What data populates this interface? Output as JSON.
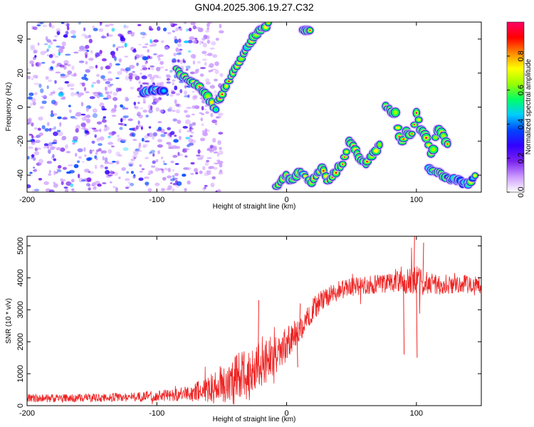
{
  "title": "GN04.2025.306.19.27.C32",
  "chart_data": [
    {
      "type": "heatmap",
      "title": "GN04.2025.306.19.27.C32",
      "xlabel": "Height of straight line (km)",
      "ylabel": "Frequency (Hz)",
      "xlim": [
        -200,
        150
      ],
      "ylim": [
        -50,
        50
      ],
      "xticks": [
        -200,
        -100,
        0,
        100
      ],
      "yticks": [
        -40,
        -20,
        0,
        20,
        40
      ],
      "colorbar": {
        "label": "Normalized spectral amplitude",
        "range": [
          0,
          1
        ],
        "ticks": [
          "0.0",
          "0.2",
          "0.4",
          "0.6",
          "0.8"
        ],
        "colors": [
          "#ffffff",
          "#cc99ff",
          "#7a22ee",
          "#3300ff",
          "#0044ff",
          "#00ccff",
          "#00ff66",
          "#99ff00",
          "#ffff00",
          "#ff8800",
          "#ff0000",
          "#ff0066"
        ]
      },
      "noise_region_x": [
        -200,
        -60
      ],
      "ridges": [
        {
          "x": [
            -110,
            -105,
            -100,
            -95
          ],
          "y": [
            9,
            9,
            10,
            10
          ],
          "amplitude": 0.45
        },
        {
          "x": [
            -85,
            -80,
            -75,
            -70,
            -65,
            -60,
            -55,
            -50,
            -46,
            -42,
            -38,
            -34,
            -30,
            -26,
            -22,
            -18,
            -14
          ],
          "y": [
            22,
            18,
            16,
            13,
            10,
            5,
            -2,
            8,
            12,
            20,
            25,
            30,
            35,
            40,
            44,
            47,
            49
          ],
          "amplitude": 0.75
        },
        {
          "x": [
            12,
            16,
            18
          ],
          "y": [
            46,
            45,
            46
          ],
          "amplitude": 0.7
        },
        {
          "x": [
            -8,
            -4,
            0,
            4,
            8,
            12,
            16,
            20,
            24,
            28,
            32,
            36,
            40,
            44,
            48,
            52,
            56,
            60,
            64,
            68,
            72
          ],
          "y": [
            -48,
            -44,
            -40,
            -44,
            -40,
            -38,
            -42,
            -44,
            -38,
            -36,
            -44,
            -40,
            -36,
            -32,
            -20,
            -24,
            -30,
            -34,
            -30,
            -26,
            -22
          ],
          "amplitude": 0.8
        },
        {
          "x": [
            76,
            80,
            84,
            88,
            92,
            96,
            100,
            104,
            108,
            112,
            116,
            120,
            124
          ],
          "y": [
            0,
            -2,
            -4,
            -22,
            -14,
            -18,
            -4,
            -14,
            -18,
            -30,
            -12,
            -16,
            -22
          ],
          "amplitude": 0.85
        },
        {
          "x": [
            110,
            115,
            120,
            125,
            130,
            135,
            140,
            145
          ],
          "y": [
            -36,
            -38,
            -40,
            -42,
            -42,
            -44,
            -46,
            -40
          ],
          "amplitude": 0.6
        }
      ]
    },
    {
      "type": "line",
      "xlabel": "Height of straight line (km)",
      "ylabel": "SNR (10 * v/v)",
      "xlim": [
        -200,
        150
      ],
      "ylim": [
        0,
        5300
      ],
      "xticks": [
        -200,
        -100,
        0,
        100
      ],
      "yticks": [
        0,
        1000,
        2000,
        3000,
        4000,
        5000
      ],
      "series": [
        {
          "name": "SNR",
          "color": "#ee2222",
          "x": [
            -200,
            -180,
            -160,
            -140,
            -120,
            -100,
            -80,
            -70,
            -60,
            -50,
            -40,
            -30,
            -20,
            -10,
            0,
            10,
            20,
            30,
            40,
            50,
            60,
            70,
            80,
            90,
            100,
            110,
            120,
            130,
            140,
            150
          ],
          "y": [
            230,
            230,
            240,
            250,
            270,
            300,
            360,
            420,
            520,
            650,
            800,
            1000,
            1300,
            1600,
            1900,
            2400,
            3000,
            3400,
            3600,
            3700,
            3750,
            3800,
            3850,
            3900,
            3850,
            3800,
            3800,
            3800,
            3800,
            3800
          ],
          "noise_amplitude": [
            130,
            130,
            130,
            140,
            150,
            170,
            220,
            300,
            450,
            600,
            800,
            900,
            750,
            650,
            550,
            450,
            380,
            320,
            300,
            300,
            300,
            300,
            300,
            400,
            550,
            350,
            320,
            300,
            300,
            300
          ],
          "spikes": [
            {
              "x": -22,
              "y": 3300
            },
            {
              "x": 10,
              "y": 3200
            },
            {
              "x": 8,
              "y": 1200
            },
            {
              "x": 90,
              "y": 1600
            },
            {
              "x": 98,
              "y": 5300
            },
            {
              "x": 100,
              "y": 1500
            },
            {
              "x": 105,
              "y": 5100
            }
          ]
        }
      ]
    }
  ]
}
